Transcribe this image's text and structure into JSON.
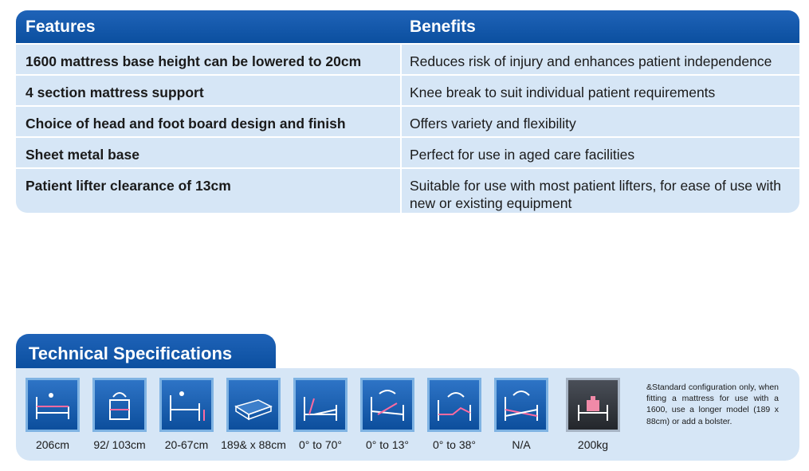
{
  "features_table": {
    "header_features": "Features",
    "header_benefits": "Benefits",
    "rows": [
      {
        "feature": "1600 mattress base height can be lowered to 20cm",
        "benefit": "Reduces risk of injury and enhances patient independence"
      },
      {
        "feature": "4 section mattress support",
        "benefit": "Knee break to suit individual patient requirements"
      },
      {
        "feature": "Choice of head and foot board design and finish",
        "benefit": "Offers variety and flexibility"
      },
      {
        "feature": "Sheet metal base",
        "benefit": "Perfect for use in aged care facilities"
      },
      {
        "feature": "Patient lifter clearance of 13cm",
        "benefit": "Suitable for use with most patient lifters, for ease of use with new or existing equipment"
      }
    ]
  },
  "technical_specifications": {
    "title": "Technical Specifications",
    "items": [
      {
        "icon": "bed-length-icon",
        "label": "206cm"
      },
      {
        "icon": "bed-width-icon",
        "label": "92/ 103cm"
      },
      {
        "icon": "bed-height-icon",
        "label": "20-67cm"
      },
      {
        "icon": "mattress-size-icon",
        "label": "189& x 88cm"
      },
      {
        "icon": "backrest-angle-icon",
        "label": "0° to 70°"
      },
      {
        "icon": "tilt-angle-icon",
        "label": "0° to 13°"
      },
      {
        "icon": "knee-break-icon",
        "label": "0° to 38°"
      },
      {
        "icon": "trendelenburg-icon",
        "label": "N/A"
      },
      {
        "icon": "safe-working-load-icon",
        "label": "200kg"
      }
    ],
    "footnote": "&Standard configuration only, when fitting a mattress for use with a 1600, use a longer model (189 x 88cm) or add a bolster."
  },
  "colors": {
    "header_blue": "#0b4f9f",
    "row_bg": "#d6e6f6",
    "icon_border": "#7fb3e3",
    "icon_dark": "#2b2f35"
  }
}
